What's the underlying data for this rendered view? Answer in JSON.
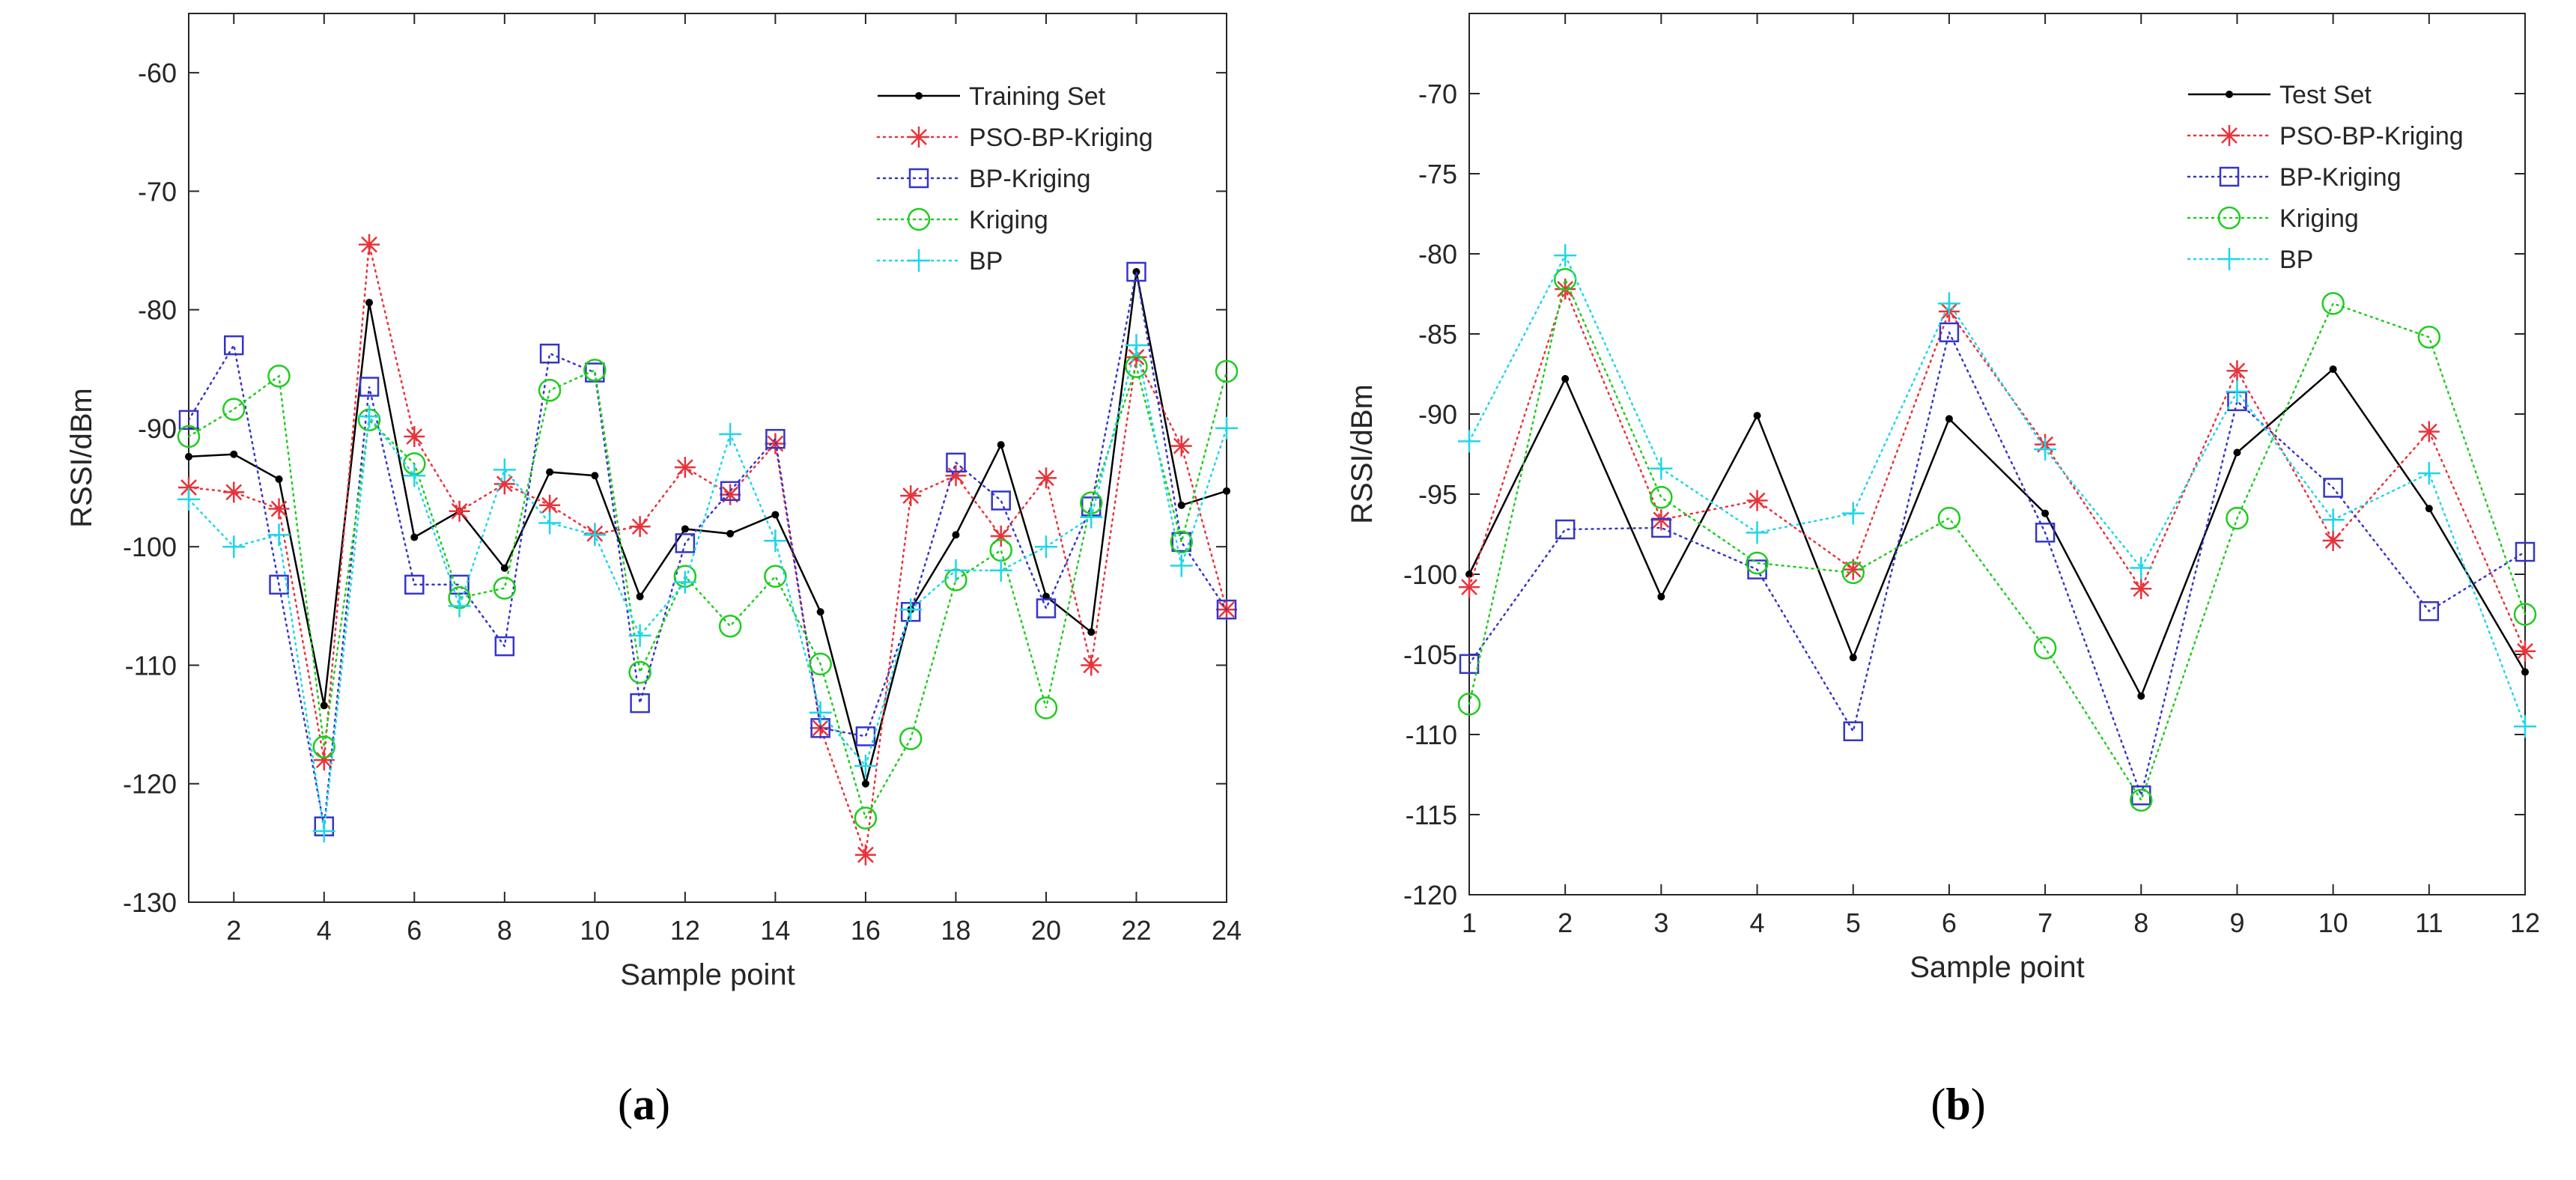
{
  "chart_data": [
    {
      "type": "line",
      "panel_label": "a",
      "title": "",
      "xlabel": "Sample point",
      "ylabel": "RSSI/dBm",
      "xlim": [
        1,
        24
      ],
      "ylim": [
        -130,
        -55
      ],
      "xticks": [
        2,
        4,
        6,
        8,
        10,
        12,
        14,
        16,
        18,
        20,
        22,
        24
      ],
      "yticks": [
        -130,
        -120,
        -110,
        -100,
        -90,
        -80,
        -70,
        -60
      ],
      "grid": false,
      "legend_position": "top-right",
      "x": [
        1,
        2,
        3,
        4,
        5,
        6,
        7,
        8,
        9,
        10,
        11,
        12,
        13,
        14,
        15,
        16,
        17,
        18,
        19,
        20,
        21,
        22,
        23,
        24
      ],
      "series": [
        {
          "name": "Training Set",
          "color": "#000000",
          "marker": "dot",
          "dash": "solid",
          "values": [
            -92.4,
            -92.2,
            -94.3,
            -113.4,
            -79.4,
            -99.2,
            -97.0,
            -101.8,
            -93.7,
            -94.0,
            -104.2,
            -98.5,
            -98.9,
            -97.3,
            -105.5,
            -120.0,
            -105.3,
            -99.0,
            -91.4,
            -104.2,
            -107.2,
            -76.8,
            -96.5,
            -95.3
          ]
        },
        {
          "name": "PSO-BP-Kriging",
          "color": "#e8333a",
          "marker": "asterisk",
          "dash": "dotted",
          "values": [
            -95.0,
            -95.4,
            -96.8,
            -118.0,
            -74.5,
            -90.7,
            -97.0,
            -94.7,
            -96.5,
            -98.9,
            -98.3,
            -93.3,
            -95.6,
            -91.3,
            -115.3,
            -126.0,
            -95.7,
            -94.0,
            -99.1,
            -94.2,
            -110.0,
            -84.0,
            -91.5,
            -105.3
          ]
        },
        {
          "name": "BP-Kriging",
          "color": "#3535c8",
          "marker": "square",
          "dash": "dotted",
          "values": [
            -89.3,
            -83.0,
            -103.2,
            -123.6,
            -86.5,
            -103.2,
            -103.2,
            -108.4,
            -83.7,
            -85.3,
            -113.2,
            -99.7,
            -95.3,
            -90.9,
            -115.3,
            -116.0,
            -105.5,
            -92.9,
            -96.1,
            -105.2,
            -96.6,
            -76.8,
            -99.6,
            -105.3
          ]
        },
        {
          "name": "Kriging",
          "color": "#1fcc1f",
          "marker": "circle",
          "dash": "dotted",
          "values": [
            -90.7,
            -88.4,
            -85.6,
            -116.9,
            -89.3,
            -93.0,
            -104.3,
            -103.5,
            -86.8,
            -85.1,
            -110.6,
            -102.5,
            -106.7,
            -102.5,
            -109.9,
            -122.9,
            -116.2,
            -102.8,
            -100.3,
            -113.6,
            -96.3,
            -84.8,
            -99.6,
            -85.2
          ]
        },
        {
          "name": "BP",
          "color": "#1fd6e6",
          "marker": "plus",
          "dash": "dotted",
          "values": [
            -96.0,
            -100.0,
            -99.0,
            -124.0,
            -89.0,
            -94.0,
            -105.0,
            -93.5,
            -98.0,
            -99.0,
            -107.5,
            -103.0,
            -90.5,
            -99.5,
            -114.0,
            -118.5,
            -105.3,
            -102.0,
            -102.0,
            -100.0,
            -97.5,
            -83.0,
            -101.6,
            -90.0
          ]
        }
      ]
    },
    {
      "type": "line",
      "panel_label": "b",
      "title": "",
      "xlabel": "Sample point",
      "ylabel": "RSSI/dBm",
      "xlim": [
        1,
        12
      ],
      "ylim": [
        -120,
        -65
      ],
      "xticks": [
        1,
        2,
        3,
        4,
        5,
        6,
        7,
        8,
        9,
        10,
        11,
        12
      ],
      "yticks": [
        -120,
        -115,
        -110,
        -105,
        -100,
        -95,
        -90,
        -85,
        -80,
        -75,
        -70
      ],
      "grid": false,
      "legend_position": "top-right",
      "x": [
        1,
        2,
        3,
        4,
        5,
        6,
        7,
        8,
        9,
        10,
        11,
        12
      ],
      "series": [
        {
          "name": "Test Set",
          "color": "#000000",
          "marker": "dot",
          "dash": "solid",
          "values": [
            -100.0,
            -87.8,
            -101.4,
            -90.1,
            -105.2,
            -90.3,
            -96.2,
            -107.6,
            -92.4,
            -87.2,
            -95.9,
            -106.1
          ]
        },
        {
          "name": "PSO-BP-Kriging",
          "color": "#e8333a",
          "marker": "asterisk",
          "dash": "dotted",
          "values": [
            -100.8,
            -82.2,
            -96.6,
            -95.4,
            -99.7,
            -83.6,
            -91.9,
            -100.9,
            -87.3,
            -97.9,
            -91.1,
            -104.8
          ]
        },
        {
          "name": "BP-Kriging",
          "color": "#3535c8",
          "marker": "square",
          "dash": "dotted",
          "values": [
            -105.6,
            -97.2,
            -97.1,
            -99.7,
            -109.8,
            -84.9,
            -97.4,
            -113.8,
            -89.2,
            -94.6,
            -102.3,
            -98.6
          ]
        },
        {
          "name": "Kriging",
          "color": "#1fcc1f",
          "marker": "circle",
          "dash": "dotted",
          "values": [
            -108.1,
            -81.6,
            -95.2,
            -99.3,
            -99.9,
            -96.5,
            -104.6,
            -114.1,
            -96.5,
            -83.1,
            -85.2,
            -102.5
          ]
        },
        {
          "name": "BP",
          "color": "#1fd6e6",
          "marker": "plus",
          "dash": "dotted",
          "values": [
            -91.7,
            -80.1,
            -93.4,
            -97.4,
            -96.2,
            -83.1,
            -92.2,
            -99.6,
            -88.6,
            -96.6,
            -93.7,
            -109.5
          ]
        }
      ]
    }
  ]
}
